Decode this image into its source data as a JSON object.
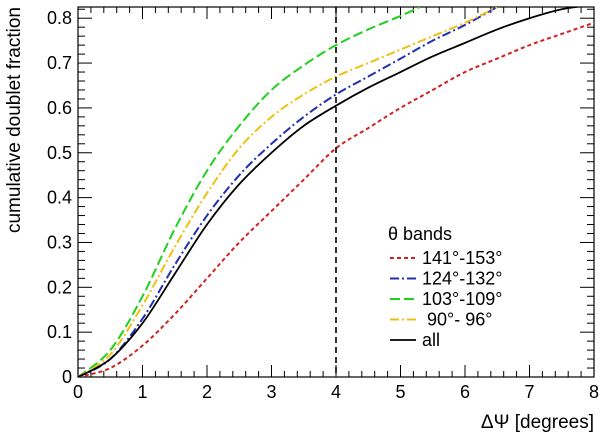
{
  "chart_data": {
    "type": "line",
    "title": "",
    "xlabel": "ΔΨ [degrees]",
    "ylabel": "cumulative doublet fraction",
    "xlim": [
      0,
      8
    ],
    "ylim": [
      0,
      0.825
    ],
    "x_ticks": [
      "0",
      "1",
      "2",
      "3",
      "4",
      "5",
      "6",
      "7",
      "8"
    ],
    "y_ticks": [
      "0",
      "0.1",
      "0.2",
      "0.3",
      "0.4",
      "0.5",
      "0.6",
      "0.7",
      "0.8"
    ],
    "grid": false,
    "reference_line": {
      "x": 4,
      "style": "dashed",
      "color": "#000000"
    },
    "legend": {
      "title": "θ bands",
      "placement": "lower-right"
    },
    "series": [
      {
        "name": "141°-153°",
        "color": "#d42020",
        "dash": "dashed",
        "points": [
          [
            0,
            0
          ],
          [
            0.5,
            0.02
          ],
          [
            1,
            0.07
          ],
          [
            1.5,
            0.14
          ],
          [
            2,
            0.22
          ],
          [
            2.5,
            0.3
          ],
          [
            3,
            0.37
          ],
          [
            3.5,
            0.44
          ],
          [
            4,
            0.51
          ],
          [
            4.5,
            0.555
          ],
          [
            5,
            0.6
          ],
          [
            5.5,
            0.64
          ],
          [
            6,
            0.68
          ],
          [
            6.5,
            0.71
          ],
          [
            7,
            0.74
          ],
          [
            7.5,
            0.765
          ],
          [
            8,
            0.79
          ]
        ]
      },
      {
        "name": "124°-132°",
        "color": "#2030b0",
        "dash": "dash-dot",
        "points": [
          [
            0,
            0
          ],
          [
            0.5,
            0.04
          ],
          [
            1,
            0.13
          ],
          [
            1.5,
            0.25
          ],
          [
            2,
            0.36
          ],
          [
            2.5,
            0.45
          ],
          [
            3,
            0.52
          ],
          [
            3.5,
            0.58
          ],
          [
            4,
            0.63
          ],
          [
            4.5,
            0.67
          ],
          [
            5,
            0.71
          ],
          [
            5.5,
            0.75
          ],
          [
            6,
            0.785
          ],
          [
            6.5,
            0.825
          ]
        ]
      },
      {
        "name": "103°-109°",
        "color": "#20d020",
        "dash": "long-dashed",
        "points": [
          [
            0,
            0
          ],
          [
            0.5,
            0.06
          ],
          [
            1,
            0.18
          ],
          [
            1.5,
            0.33
          ],
          [
            2,
            0.46
          ],
          [
            2.5,
            0.56
          ],
          [
            3,
            0.64
          ],
          [
            3.5,
            0.695
          ],
          [
            4,
            0.74
          ],
          [
            4.5,
            0.775
          ],
          [
            5,
            0.805
          ],
          [
            5.3,
            0.825
          ]
        ]
      },
      {
        "name": " 90°- 96°",
        "color": "#f0c010",
        "dash": "dash-dot",
        "points": [
          [
            0,
            0
          ],
          [
            0.5,
            0.05
          ],
          [
            1,
            0.16
          ],
          [
            1.5,
            0.29
          ],
          [
            2,
            0.41
          ],
          [
            2.5,
            0.51
          ],
          [
            3,
            0.58
          ],
          [
            3.5,
            0.63
          ],
          [
            4,
            0.67
          ],
          [
            4.5,
            0.7
          ],
          [
            5,
            0.73
          ],
          [
            5.5,
            0.76
          ],
          [
            6,
            0.79
          ],
          [
            6.5,
            0.825
          ]
        ]
      },
      {
        "name": "all",
        "color": "#000000",
        "dash": "solid",
        "points": [
          [
            0,
            0
          ],
          [
            0.5,
            0.04
          ],
          [
            1,
            0.12
          ],
          [
            1.5,
            0.23
          ],
          [
            2,
            0.34
          ],
          [
            2.5,
            0.43
          ],
          [
            3,
            0.5
          ],
          [
            3.5,
            0.56
          ],
          [
            4,
            0.605
          ],
          [
            4.5,
            0.645
          ],
          [
            5,
            0.68
          ],
          [
            5.5,
            0.715
          ],
          [
            6,
            0.745
          ],
          [
            6.5,
            0.775
          ],
          [
            7,
            0.8
          ],
          [
            7.5,
            0.82
          ],
          [
            8,
            0.83
          ]
        ]
      }
    ]
  }
}
